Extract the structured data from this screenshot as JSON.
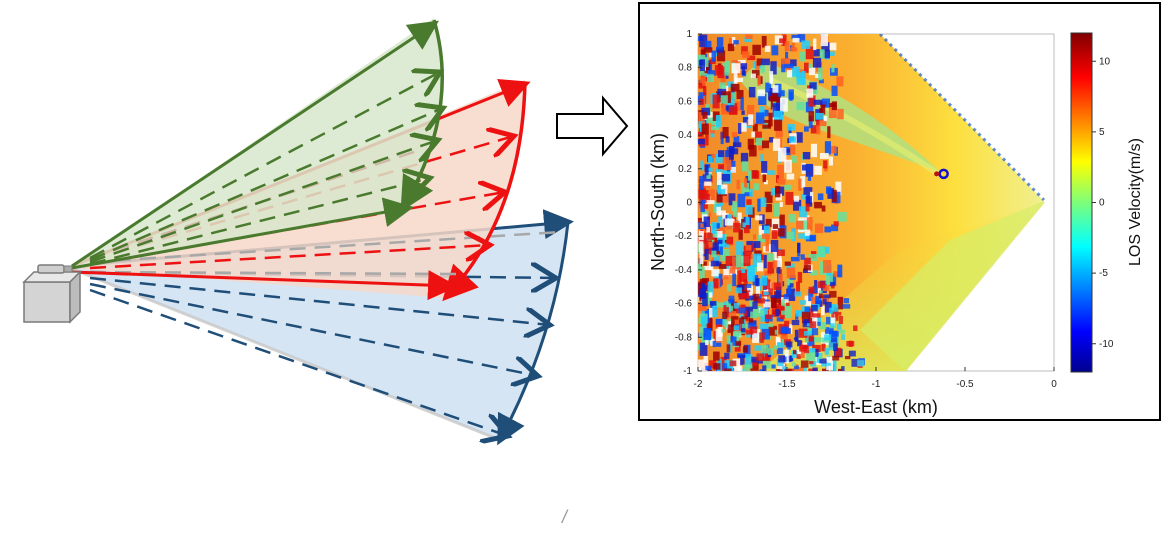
{
  "diagram": {
    "scan_colors": {
      "green": "#4a7a2e",
      "red": "#ee1111",
      "blue": "#1f4e79",
      "green_fill": "#d8e8cc",
      "red_fill": "#f6d8c8",
      "blue_fill": "#d2e2f2"
    },
    "icons": {
      "lidar": "lidar-device-icon",
      "arrow": "right-arrow-icon"
    }
  },
  "plot": {
    "xlabel": "West-East (km)",
    "ylabel": "North-South (km)",
    "colorbar_label": "LOS Velocity(m/s)"
  },
  "chart_data": {
    "type": "heatmap",
    "xlabel": "West-East (km)",
    "ylabel": "North-South (km)",
    "xlim": [
      -2,
      0
    ],
    "ylim": [
      -1,
      1
    ],
    "xticks": [
      "-2",
      "-1.5",
      "-1",
      "-0.5",
      "0"
    ],
    "yticks": [
      "1",
      "0.8",
      "0.6",
      "0.4",
      "0.2",
      "0",
      "-0.2",
      "-0.4",
      "-0.6",
      "-0.8",
      "-1"
    ],
    "colorbar": {
      "label": "LOS Velocity(m/s)",
      "ticks": [
        "10",
        "5",
        "0",
        "-5",
        "-10"
      ],
      "range": [
        -12,
        12
      ]
    },
    "marker": {
      "x": -0.62,
      "y": 0.17
    },
    "grid": false
  },
  "footer": {
    "mark": "/"
  }
}
